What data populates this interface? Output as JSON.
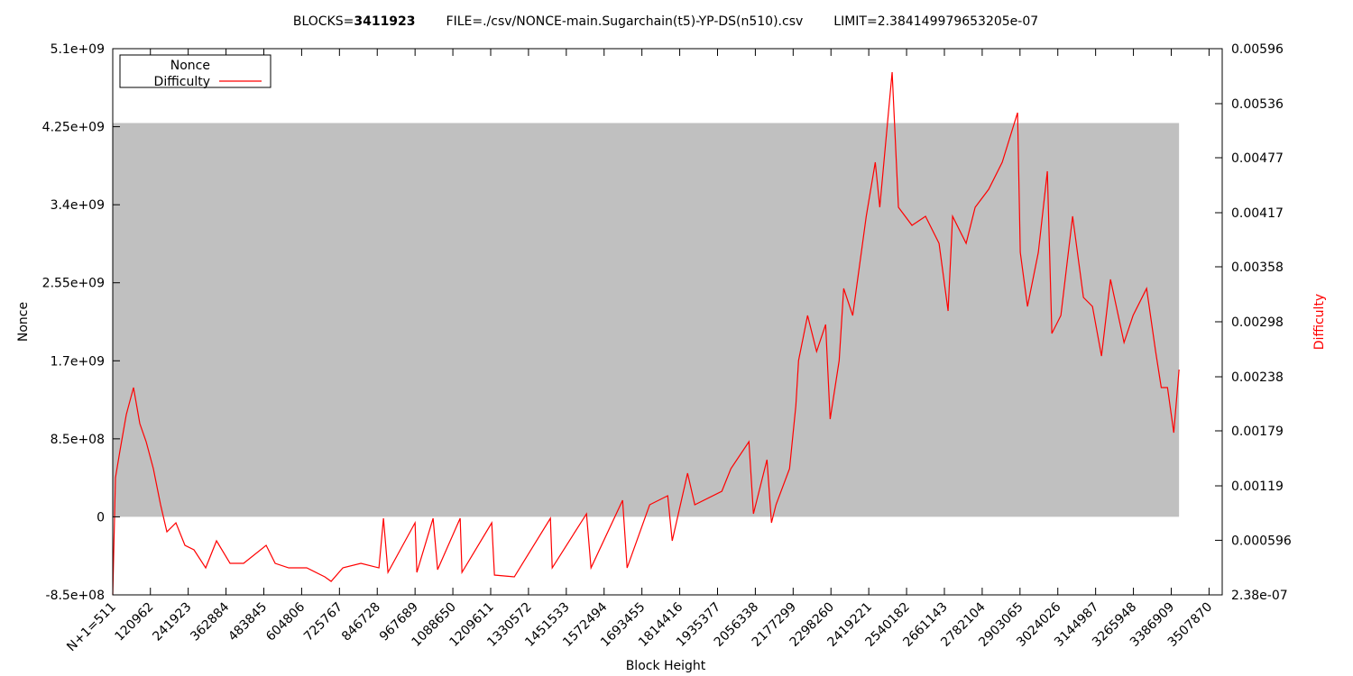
{
  "chart_data": {
    "type": "line",
    "title": [
      "BLOCKS=",
      "3411923",
      "FILE=./csv/NONCE-main.Sugarchain(t5)-YP-DS(n510).csv",
      "LIMIT=2.384149979653205e-07"
    ],
    "xlabel": "Block Height",
    "ylabel": "Nonce",
    "y2label": "Difficulty",
    "legend": "top left",
    "xlim": [
      511,
      3550000
    ],
    "xticks": [
      {
        "value": 511,
        "label": "N+1=511"
      },
      120962,
      241923,
      362884,
      483845,
      604806,
      725767,
      846728,
      967689,
      1088650,
      1209611,
      1330572,
      1451533,
      1572494,
      1693455,
      1814416,
      1935377,
      2056338,
      2177299,
      2298260,
      2419221,
      2540182,
      2661143,
      2782104,
      2903065,
      3024026,
      3144987,
      3265948,
      3386909,
      3507870
    ],
    "ylim": [
      -850000000,
      5100000000
    ],
    "yticks": [
      {
        "value": -850000000,
        "label": "-8.5e+08"
      },
      0,
      {
        "value": 850000000,
        "label": "8.5e+08"
      },
      {
        "value": 1700000000,
        "label": "1.7e+09"
      },
      {
        "value": 2550000000,
        "label": "2.55e+09"
      },
      {
        "value": 3400000000,
        "label": "3.4e+09"
      },
      {
        "value": 4250000000,
        "label": "4.25e+09"
      },
      {
        "value": 5100000000,
        "label": "5.1e+09"
      }
    ],
    "y2lim": [
      2.38e-07,
      0.00596
    ],
    "y2ticks": [
      {
        "value": 2.38e-07,
        "label": "2.38e-07"
      },
      0.000596,
      0.00119,
      0.00179,
      0.00238,
      0.00298,
      0.00358,
      0.00417,
      0.00477,
      0.00536,
      0.00596
    ],
    "series": [
      {
        "name": "Nonce",
        "type": "band",
        "color": "#c0c0c0",
        "x": [
          511,
          3411923
        ],
        "low": [
          0,
          0
        ],
        "high": [
          4290000000,
          4290000000
        ]
      },
      {
        "name": "Difficulty",
        "type": "line",
        "color": "#ff0000",
        "axis": "y2",
        "x": [
          511,
          9172,
          23607,
          43816,
          66912,
          87121,
          107330,
          130426,
          153522,
          173731,
          202601,
          231471,
          260341,
          297872,
          332516,
          375821,
          419126,
          491301,
          520171,
          563476,
          621216,
          678956,
          699165,
          736696,
          794436,
          852176,
          866611,
          881046,
          967656,
          973430,
          1025396,
          1039831,
          1112006,
          1117780,
          1213051,
          1221712,
          1285226,
          1400706,
          1406480,
          1516186,
          1530621,
          1631666,
          1646101,
          1718276,
          1776016,
          1790451,
          1839530,
          1862626,
          1949236,
          1978106,
          2035846,
          2050281,
          2093586,
          2108021,
          2122456,
          2165761,
          2185970,
          2194631,
          2223501,
          2252371,
          2281241,
          2295676,
          2324546,
          2338981,
          2367851,
          2411156,
          2440026,
          2454461,
          2493992,
          2514201,
          2557506,
          2600811,
          2644116,
          2672986,
          2687421,
          2730726,
          2759596,
          2802901,
          2846206,
          2895285,
          2903946,
          2927042,
          2961686,
          2990556,
          3004991,
          3033861,
          3071392,
          3106036,
          3134906,
          3163776,
          3192646,
          3235951,
          3264821,
          3308126,
          3336996,
          3355000,
          3375000,
          3395000,
          3411923
        ],
        "values": [
          2.38e-07,
          0.0012786,
          0.0015736,
          0.001967,
          0.0022621,
          0.0018687,
          0.001672,
          0.0013769,
          0.0009835,
          0.00068845,
          0.0007868,
          0.00054093,
          0.00049175,
          0.00029505,
          0.0005901,
          0.00034423,
          0.00034423,
          0.00054093,
          0.00034423,
          0.00029505,
          0.00029505,
          0.0001967,
          0.00014753,
          0.00029505,
          0.00034423,
          0.00029505,
          0.00083598,
          0.00024588,
          0.0007868,
          0.00024588,
          0.00083598,
          0.00027538,
          0.00083598,
          0.00024588,
          0.0007868,
          0.00021637,
          0.0001967,
          0.00083598,
          0.00029505,
          0.00088515,
          0.00029505,
          0.0010327,
          0.00029505,
          0.0009835,
          0.0010819,
          0.0005901,
          0.0013277,
          0.0009835,
          0.001131,
          0.0013769,
          0.001672,
          0.00088515,
          0.0014753,
          0.0007868,
          0.0009835,
          0.0013769,
          0.0020654,
          0.0025571,
          0.0030489,
          0.0026555,
          0.0029505,
          0.0019178,
          0.0025571,
          0.003344,
          0.0030489,
          0.0041307,
          0.0047208,
          0.0042291,
          0.0057043,
          0.0042291,
          0.0040324,
          0.0041307,
          0.0038357,
          0.003098,
          0.0041307,
          0.0038357,
          0.0042291,
          0.0044258,
          0.0047208,
          0.0052617,
          0.0037373,
          0.0031472,
          0.0037373,
          0.0046225,
          0.0028522,
          0.0030489,
          0.0041307,
          0.0032456,
          0.0031472,
          0.0026063,
          0.0034423,
          0.0027538,
          0.0030489,
          0.003344,
          0.0026555,
          0.0022621,
          0.0022621,
          0.0017703,
          0.0024588
        ]
      }
    ]
  }
}
